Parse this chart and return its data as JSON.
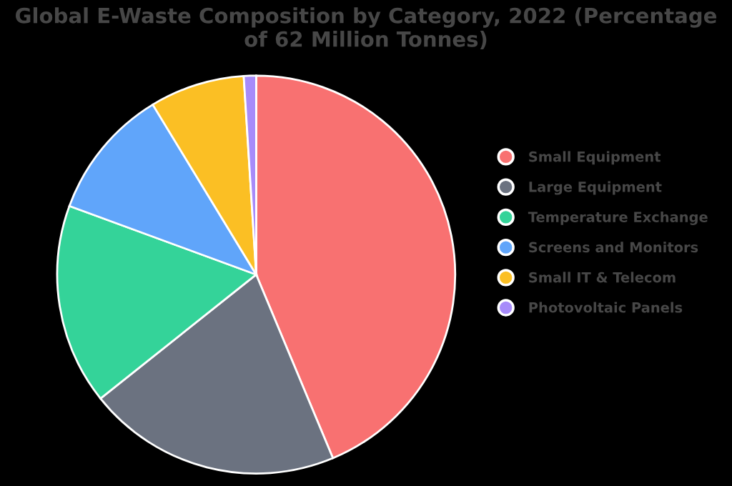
{
  "chart_data": {
    "type": "pie",
    "title": "Global E-Waste Composition by Category, 2022 (Percentage of 62 Million Tonnes)",
    "categories": [
      "Small Equipment",
      "Large Equipment",
      "Temperature Exchange",
      "Screens and Monitors",
      "Small IT & Telecom",
      "Photovoltaic Panels"
    ],
    "values": [
      43.7,
      20.6,
      16.3,
      10.7,
      7.7,
      1.0
    ],
    "colors": [
      "#f87171",
      "#6b7280",
      "#34d399",
      "#60a5fa",
      "#fbbf24",
      "#a78bfa"
    ],
    "legend": "right"
  }
}
